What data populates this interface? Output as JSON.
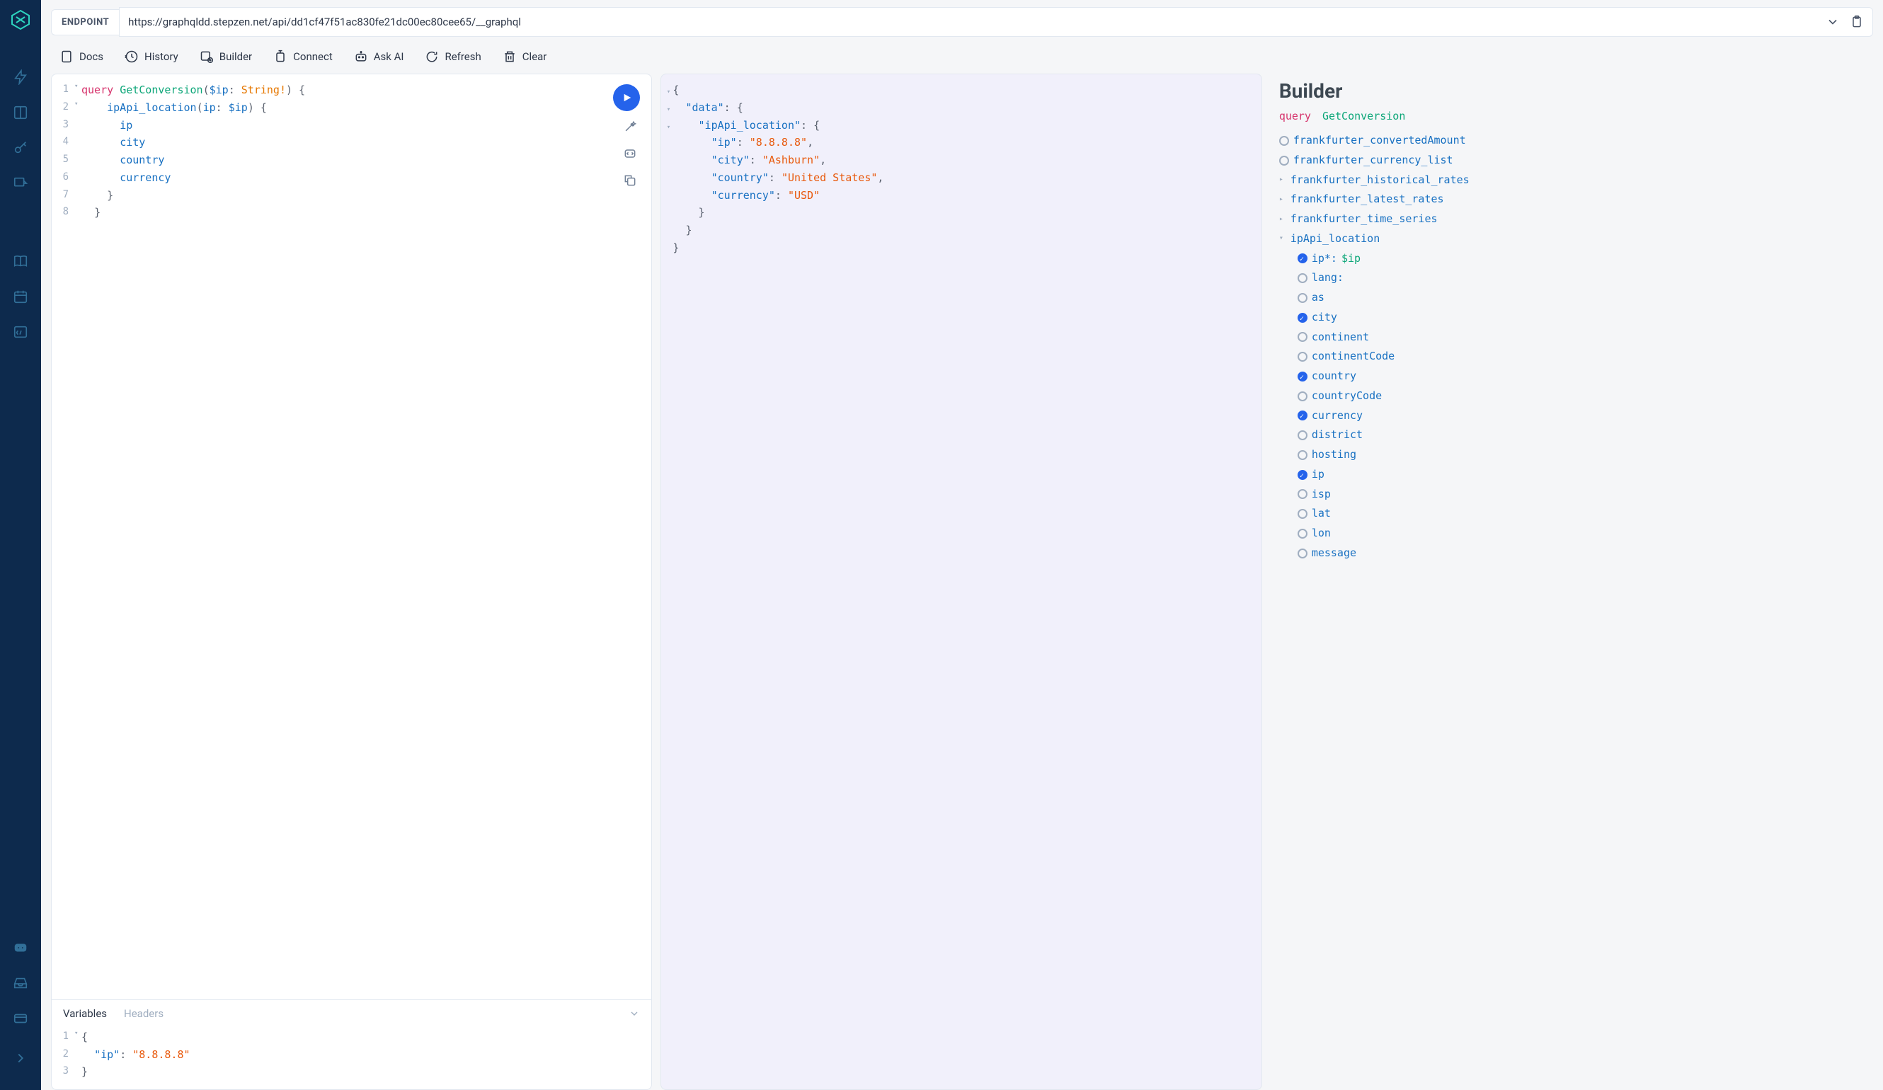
{
  "endpoint": {
    "label": "ENDPOINT",
    "url": "https://graphqldd.stepzen.net/api/dd1cf47f51ac830fe21dc00ec80cee65/__graphql"
  },
  "toolbar": {
    "docs": "Docs",
    "history": "History",
    "builder": "Builder",
    "connect": "Connect",
    "askai": "Ask AI",
    "refresh": "Refresh",
    "clear": "Clear"
  },
  "query": {
    "lines": [
      {
        "n": 1,
        "fold": "▾",
        "tokens": [
          [
            "kw-query",
            "query "
          ],
          [
            "kw-name",
            "GetConversion"
          ],
          [
            "kw-punct",
            "("
          ],
          [
            "kw-var",
            "$ip"
          ],
          [
            "kw-punct",
            ": "
          ],
          [
            "kw-type",
            "String!"
          ],
          [
            "kw-punct",
            ") {"
          ]
        ]
      },
      {
        "n": 2,
        "fold": "▾",
        "tokens": [
          [
            "",
            "    "
          ],
          [
            "kw-field",
            "ipApi_location"
          ],
          [
            "kw-punct",
            "("
          ],
          [
            "kw-field",
            "ip"
          ],
          [
            "kw-punct",
            ": "
          ],
          [
            "kw-var",
            "$ip"
          ],
          [
            "kw-punct",
            ") {"
          ]
        ]
      },
      {
        "n": 3,
        "fold": "",
        "tokens": [
          [
            "",
            "      "
          ],
          [
            "kw-field",
            "ip"
          ]
        ]
      },
      {
        "n": 4,
        "fold": "",
        "tokens": [
          [
            "",
            "      "
          ],
          [
            "kw-field",
            "city"
          ]
        ]
      },
      {
        "n": 5,
        "fold": "",
        "tokens": [
          [
            "",
            "      "
          ],
          [
            "kw-field",
            "country"
          ]
        ]
      },
      {
        "n": 6,
        "fold": "",
        "tokens": [
          [
            "",
            "      "
          ],
          [
            "kw-field",
            "currency"
          ]
        ]
      },
      {
        "n": 7,
        "fold": "",
        "tokens": [
          [
            "",
            "    "
          ],
          [
            "kw-punct",
            "}"
          ]
        ]
      },
      {
        "n": 8,
        "fold": "",
        "tokens": [
          [
            "",
            "  "
          ],
          [
            "kw-punct",
            "}"
          ]
        ]
      }
    ]
  },
  "variables": {
    "tab_vars": "Variables",
    "tab_headers": "Headers",
    "lines": [
      {
        "n": 1,
        "fold": "▾",
        "tokens": [
          [
            "kw-punct",
            "{"
          ]
        ]
      },
      {
        "n": 2,
        "fold": "",
        "tokens": [
          [
            "",
            "  "
          ],
          [
            "kw-key",
            "\"ip\""
          ],
          [
            "kw-punct",
            ": "
          ],
          [
            "kw-str",
            "\"8.8.8.8\""
          ]
        ]
      },
      {
        "n": 3,
        "fold": "",
        "tokens": [
          [
            "kw-punct",
            "}"
          ]
        ]
      }
    ]
  },
  "response": {
    "lines": [
      {
        "fold": "▾",
        "indent": 0,
        "tokens": [
          [
            "kw-punct",
            "{"
          ]
        ]
      },
      {
        "fold": "▾",
        "indent": 1,
        "tokens": [
          [
            "kw-key",
            "\"data\""
          ],
          [
            "kw-punct",
            ": {"
          ]
        ]
      },
      {
        "fold": "▾",
        "indent": 2,
        "tokens": [
          [
            "kw-key",
            "\"ipApi_location\""
          ],
          [
            "kw-punct",
            ": {"
          ]
        ]
      },
      {
        "fold": "",
        "indent": 3,
        "tokens": [
          [
            "kw-key",
            "\"ip\""
          ],
          [
            "kw-punct",
            ": "
          ],
          [
            "kw-str",
            "\"8.8.8.8\""
          ],
          [
            "kw-punct",
            ","
          ]
        ]
      },
      {
        "fold": "",
        "indent": 3,
        "tokens": [
          [
            "kw-key",
            "\"city\""
          ],
          [
            "kw-punct",
            ": "
          ],
          [
            "kw-str",
            "\"Ashburn\""
          ],
          [
            "kw-punct",
            ","
          ]
        ]
      },
      {
        "fold": "",
        "indent": 3,
        "tokens": [
          [
            "kw-key",
            "\"country\""
          ],
          [
            "kw-punct",
            ": "
          ],
          [
            "kw-str",
            "\"United States\""
          ],
          [
            "kw-punct",
            ","
          ]
        ]
      },
      {
        "fold": "",
        "indent": 3,
        "tokens": [
          [
            "kw-key",
            "\"currency\""
          ],
          [
            "kw-punct",
            ": "
          ],
          [
            "kw-str",
            "\"USD\""
          ]
        ]
      },
      {
        "fold": "",
        "indent": 2,
        "tokens": [
          [
            "kw-punct",
            "}"
          ]
        ]
      },
      {
        "fold": "",
        "indent": 1,
        "tokens": [
          [
            "kw-punct",
            "}"
          ]
        ]
      },
      {
        "fold": "",
        "indent": 0,
        "tokens": [
          [
            "kw-punct",
            "}"
          ]
        ]
      }
    ]
  },
  "builder": {
    "title": "Builder",
    "tab_query": "query",
    "tab_name": "GetConversion",
    "items": [
      {
        "type": "radio",
        "checked": false,
        "indent": 0,
        "label": "frankfurter_convertedAmount"
      },
      {
        "type": "radio",
        "checked": false,
        "indent": 0,
        "label": "frankfurter_currency_list"
      },
      {
        "type": "caret",
        "open": false,
        "indent": 0,
        "label": "frankfurter_historical_rates"
      },
      {
        "type": "caret",
        "open": false,
        "indent": 0,
        "label": "frankfurter_latest_rates"
      },
      {
        "type": "caret",
        "open": false,
        "indent": 0,
        "label": "frankfurter_time_series"
      },
      {
        "type": "caret",
        "open": true,
        "indent": 0,
        "label": "ipApi_location"
      },
      {
        "type": "radio",
        "checked": true,
        "indent": 1,
        "label": "ip*:",
        "argval": "$ip"
      },
      {
        "type": "radio",
        "checked": false,
        "indent": 1,
        "label": "lang:"
      },
      {
        "type": "radio",
        "checked": false,
        "indent": 1,
        "label": "as"
      },
      {
        "type": "radio",
        "checked": true,
        "indent": 1,
        "label": "city"
      },
      {
        "type": "radio",
        "checked": false,
        "indent": 1,
        "label": "continent"
      },
      {
        "type": "radio",
        "checked": false,
        "indent": 1,
        "label": "continentCode"
      },
      {
        "type": "radio",
        "checked": true,
        "indent": 1,
        "label": "country"
      },
      {
        "type": "radio",
        "checked": false,
        "indent": 1,
        "label": "countryCode"
      },
      {
        "type": "radio",
        "checked": true,
        "indent": 1,
        "label": "currency"
      },
      {
        "type": "radio",
        "checked": false,
        "indent": 1,
        "label": "district"
      },
      {
        "type": "radio",
        "checked": false,
        "indent": 1,
        "label": "hosting"
      },
      {
        "type": "radio",
        "checked": true,
        "indent": 1,
        "label": "ip"
      },
      {
        "type": "radio",
        "checked": false,
        "indent": 1,
        "label": "isp"
      },
      {
        "type": "radio",
        "checked": false,
        "indent": 1,
        "label": "lat"
      },
      {
        "type": "radio",
        "checked": false,
        "indent": 1,
        "label": "lon"
      },
      {
        "type": "radio",
        "checked": false,
        "indent": 1,
        "label": "message"
      }
    ]
  },
  "colors": {
    "sidebar_bg": "#0d2a4d",
    "accent": "#2563eb",
    "teal": "#0ca678",
    "pink": "#d6336c",
    "blue_field": "#1971c2",
    "orange_str": "#e8590c",
    "response_bg": "#f1f0fb"
  }
}
